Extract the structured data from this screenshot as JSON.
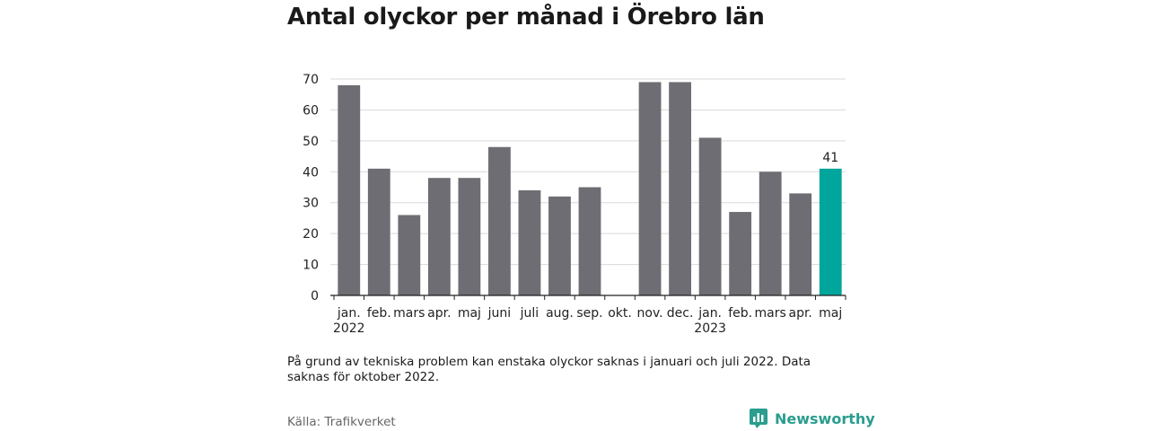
{
  "title": "Antal olyckor per månad i Örebro län",
  "note": "På grund av tekniska problem kan enstaka olyckor saknas i januari och juli 2022. Data saknas för oktober 2022.",
  "source": "Källa: Trafikverket",
  "brand": {
    "name": "Newsworthy",
    "icon": "newsworthy-logo-icon"
  },
  "colors": {
    "bar": "#6e6d73",
    "highlight": "#00a59b",
    "grid": "#d9d9d9",
    "axis": "#222222"
  },
  "chart_data": {
    "type": "bar",
    "categories": [
      "jan.",
      "feb.",
      "mars",
      "apr.",
      "maj",
      "juni",
      "juli",
      "aug.",
      "sep.",
      "okt.",
      "nov.",
      "dec.",
      "jan.",
      "feb.",
      "mars",
      "apr.",
      "maj"
    ],
    "year_labels": [
      {
        "index": 0,
        "label": "2022"
      },
      {
        "index": 12,
        "label": "2023"
      }
    ],
    "values": [
      68,
      41,
      26,
      38,
      38,
      48,
      34,
      32,
      35,
      null,
      69,
      69,
      51,
      27,
      40,
      33,
      41
    ],
    "highlight_index": 16,
    "data_labels": [
      {
        "index": 16,
        "label": "41"
      }
    ],
    "yticks": [
      0,
      10,
      20,
      30,
      40,
      50,
      60,
      70
    ],
    "ylim": [
      0,
      70
    ],
    "grid": true,
    "xlabel": "",
    "ylabel": ""
  }
}
